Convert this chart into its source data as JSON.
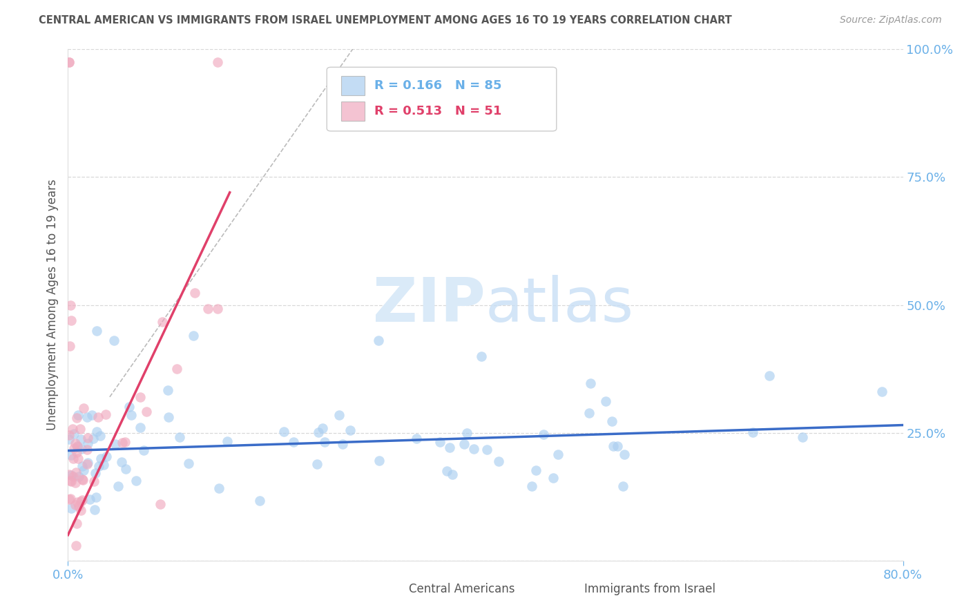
{
  "title": "CENTRAL AMERICAN VS IMMIGRANTS FROM ISRAEL UNEMPLOYMENT AMONG AGES 16 TO 19 YEARS CORRELATION CHART",
  "source": "Source: ZipAtlas.com",
  "ylabel": "Unemployment Among Ages 16 to 19 years",
  "xlim": [
    0.0,
    0.8
  ],
  "ylim": [
    0.0,
    1.0
  ],
  "yticks": [
    0.0,
    0.25,
    0.5,
    0.75,
    1.0
  ],
  "ytick_labels": [
    "",
    "25.0%",
    "50.0%",
    "75.0%",
    "100.0%"
  ],
  "background_color": "#ffffff",
  "blue_color": "#aacef0",
  "pink_color": "#f0aabf",
  "blue_line_color": "#3a6cc8",
  "pink_line_color": "#e0406a",
  "grid_color": "#d8d8d8",
  "title_color": "#555555",
  "axis_color": "#6ab0e8",
  "right_axis_color": "#6ab0e8",
  "watermark_color": "#daeaf8",
  "legend_R_blue": "R = 0.166",
  "legend_N_blue": "N = 85",
  "legend_R_pink": "R = 0.513",
  "legend_N_pink": "N = 51",
  "legend_label_blue": "Central Americans",
  "legend_label_pink": "Immigrants from Israel"
}
